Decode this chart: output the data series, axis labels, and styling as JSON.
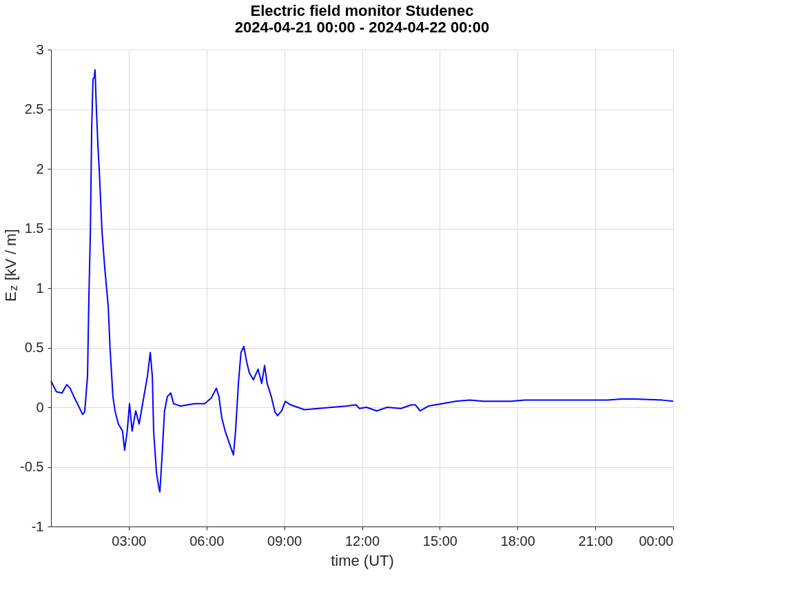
{
  "chart_data": {
    "type": "line",
    "title": [
      "Electric field monitor Studenec",
      "2024-04-21 00:00 - 2024-04-22 00:00"
    ],
    "xlabel": "time (UT)",
    "ylabel": "E$_{z}$ [kV / m]",
    "x": [
      0.0,
      0.21,
      0.43,
      0.53,
      0.61,
      0.74,
      0.88,
      1.02,
      1.22,
      1.3,
      1.41,
      1.46,
      1.52,
      1.57,
      1.62,
      1.67,
      1.7,
      1.75,
      1.81,
      1.86,
      1.97,
      2.07,
      2.21,
      2.28,
      2.39,
      2.47,
      2.6,
      2.76,
      2.84,
      2.94,
      3.03,
      3.13,
      3.27,
      3.4,
      3.72,
      3.83,
      3.91,
      3.96,
      4.07,
      4.15,
      4.2,
      4.28,
      4.38,
      4.49,
      4.62,
      4.73,
      5.0,
      5.53,
      5.93,
      6.19,
      6.38,
      6.48,
      6.59,
      6.72,
      6.91,
      7.04,
      7.12,
      7.23,
      7.33,
      7.44,
      7.55,
      7.65,
      7.81,
      7.99,
      8.13,
      8.24,
      8.34,
      8.5,
      8.64,
      8.74,
      8.9,
      9.04,
      9.25,
      9.78,
      10.31,
      10.84,
      11.37,
      11.77,
      11.9,
      12.17,
      12.57,
      12.97,
      13.5,
      13.9,
      14.06,
      14.24,
      14.56,
      15.09,
      15.62,
      16.15,
      16.69,
      17.22,
      17.75,
      18.28,
      19.34,
      20.41,
      21.47,
      22.0,
      22.54,
      23.59,
      24.0
    ],
    "series": [
      {
        "color": "#0000ff",
        "values": [
          0.22,
          0.13,
          0.12,
          0.16,
          0.19,
          0.16,
          0.09,
          0.03,
          -0.06,
          -0.04,
          0.26,
          0.9,
          1.47,
          2.34,
          2.75,
          2.77,
          2.83,
          2.51,
          2.2,
          2.0,
          1.47,
          1.18,
          0.84,
          0.49,
          0.09,
          -0.03,
          -0.14,
          -0.2,
          -0.36,
          -0.2,
          0.03,
          -0.2,
          -0.03,
          -0.14,
          0.26,
          0.46,
          0.26,
          -0.2,
          -0.55,
          -0.66,
          -0.71,
          -0.43,
          -0.03,
          0.09,
          0.12,
          0.03,
          0.01,
          0.03,
          0.03,
          0.08,
          0.16,
          0.09,
          -0.09,
          -0.2,
          -0.32,
          -0.4,
          -0.2,
          0.2,
          0.46,
          0.51,
          0.38,
          0.29,
          0.23,
          0.32,
          0.2,
          0.35,
          0.2,
          0.09,
          -0.04,
          -0.07,
          -0.03,
          0.05,
          0.02,
          -0.02,
          -0.01,
          0.0,
          0.01,
          0.02,
          -0.01,
          0.0,
          -0.03,
          0.0,
          -0.01,
          0.02,
          0.02,
          -0.03,
          0.01,
          0.03,
          0.05,
          0.06,
          0.05,
          0.05,
          0.05,
          0.06,
          0.06,
          0.06,
          0.06,
          0.07,
          0.07,
          0.06,
          0.05
        ]
      }
    ],
    "xlim": [
      0,
      24
    ],
    "xticks": [
      {
        "value": 3,
        "label": "03:00"
      },
      {
        "value": 6,
        "label": "06:00"
      },
      {
        "value": 9,
        "label": "09:00"
      },
      {
        "value": 12,
        "label": "12:00"
      },
      {
        "value": 15,
        "label": "15:00"
      },
      {
        "value": 18,
        "label": "18:00"
      },
      {
        "value": 21,
        "label": "21:00"
      },
      {
        "value": 24,
        "label": "00:00"
      }
    ],
    "ylim": [
      -1,
      3
    ],
    "yticks": [
      -1,
      -0.5,
      0,
      0.5,
      1,
      1.5,
      2,
      2.5,
      3
    ],
    "grid": true,
    "line_style": "solid",
    "marker": "none"
  }
}
